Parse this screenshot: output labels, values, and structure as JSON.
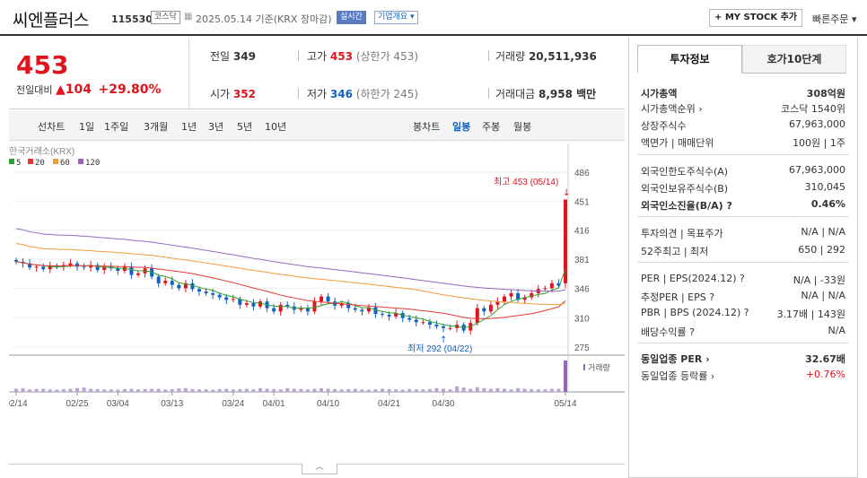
{
  "header": {
    "name": "씨엔플러스",
    "code": "115530",
    "market_badge": "코스닥",
    "date": "2025.05.14 기준(KRX 장마감)",
    "realtime_badge": "실시간",
    "company_badge": "기업개요 ▾",
    "mystock_label": "+ MY STOCK 추가",
    "quick_order": "빠른주문 ▾"
  },
  "quote": {
    "price": "453",
    "change_label": "전일대비",
    "change_arrow": "▲",
    "change": "104",
    "change_pct": "+29.80%",
    "prev_label": "전일",
    "prev": "349",
    "high_label": "고가",
    "high": "453",
    "high_limit": "(상한가 453)",
    "volume_label": "거래량",
    "volume": "20,511,936",
    "open_label": "시가",
    "open": "352",
    "low_label": "저가",
    "low": "346",
    "low_limit": "(하한가 245)",
    "amount_label": "거래대금",
    "amount": "8,958 백만"
  },
  "tabs": {
    "line_label": "선차트",
    "periods": [
      "1일",
      "1주일",
      "3개월",
      "1년",
      "3년",
      "5년",
      "10년"
    ],
    "candle_label": "봉차트",
    "candles": [
      "일봉",
      "주봉",
      "월봉"
    ]
  },
  "chart_data": {
    "type": "candlestick",
    "source_label": "한국거래소(KRX)",
    "legend": [
      {
        "name": "5",
        "color": "#2ca02c"
      },
      {
        "name": "20",
        "color": "#e53935"
      },
      {
        "name": "60",
        "color": "#f39c3a"
      },
      {
        "name": "120",
        "color": "#9467bd"
      }
    ],
    "y_ticks": [
      486,
      451,
      416,
      381,
      346,
      310,
      275
    ],
    "x_ticks": [
      "02/14",
      "02/25",
      "03/04",
      "03/13",
      "03/24",
      "04/01",
      "04/10",
      "04/21",
      "04/30",
      "05/14"
    ],
    "high_annotation": "최고 453 (05/14)",
    "low_annotation": "최저 292 (04/22)",
    "volume_label": "거래량",
    "up_color": "#e0141f",
    "down_color": "#1261c4",
    "closes": [
      378,
      376,
      371,
      372,
      369,
      373,
      372,
      374,
      376,
      372,
      371,
      374,
      368,
      372,
      370,
      367,
      372,
      362,
      364,
      370,
      360,
      352,
      355,
      350,
      346,
      352,
      345,
      342,
      340,
      338,
      335,
      332,
      333,
      326,
      328,
      324,
      330,
      322,
      318,
      326,
      324,
      320,
      322,
      318,
      330,
      336,
      330,
      325,
      328,
      322,
      320,
      318,
      323,
      315,
      314,
      312,
      316,
      310,
      308,
      305,
      305,
      302,
      300,
      298,
      298,
      302,
      295,
      304,
      322,
      318,
      326,
      330,
      336,
      340,
      332,
      335,
      340,
      345,
      346,
      352,
      349,
      453
    ],
    "volumes": [
      0.1,
      0.12,
      0.08,
      0.09,
      0.1,
      0.08,
      0.07,
      0.09,
      0.1,
      0.12,
      0.14,
      0.1,
      0.09,
      0.08,
      0.08,
      0.07,
      0.09,
      0.1,
      0.08,
      0.09,
      0.1,
      0.1,
      0.08,
      0.09,
      0.11,
      0.12,
      0.09,
      0.08,
      0.08,
      0.07,
      0.09,
      0.1,
      0.08,
      0.09,
      0.1,
      0.08,
      0.12,
      0.1,
      0.09,
      0.08,
      0.12,
      0.1,
      0.09,
      0.08,
      0.1,
      0.12,
      0.1,
      0.09,
      0.08,
      0.09,
      0.1,
      0.08,
      0.07,
      0.08,
      0.1,
      0.09,
      0.08,
      0.07,
      0.09,
      0.08,
      0.08,
      0.09,
      0.12,
      0.1,
      0.08,
      0.18,
      0.14,
      0.1,
      0.15,
      0.12,
      0.1,
      0.12,
      0.1,
      0.08,
      0.12,
      0.1,
      0.09,
      0.08,
      0.08,
      0.1,
      0.1,
      1.0
    ]
  },
  "invest": {
    "tab_on": "투자정보",
    "tab_off": "호가10단계",
    "rows": [
      {
        "k": "시가총액",
        "v": "308억원"
      },
      {
        "k": "시가총액순위 ›",
        "v": "코스닥 1540위"
      },
      {
        "k": "상장주식수",
        "v": "67,963,000"
      },
      {
        "k": "액면가 | 매매단위",
        "v": "100원 | 1주"
      },
      {
        "k": "외국인한도주식수(A)",
        "v": "67,963,000"
      },
      {
        "k": "외국인보유주식수(B)",
        "v": "310,045"
      },
      {
        "k": "외국인소진율(B/A) ?",
        "v": "0.46%"
      },
      {
        "k": "투자의견 | 목표주가",
        "v": "N/A | N/A"
      },
      {
        "k": "52주최고 | 최저",
        "v": "650 | 292"
      },
      {
        "k": "PER | EPS(2024.12) ?",
        "v": "N/A | -33원"
      },
      {
        "k": "추정PER | EPS ?",
        "v": "N/A | N/A"
      },
      {
        "k": "PBR | BPS (2024.12) ?",
        "v": "3.17배 | 143원"
      },
      {
        "k": "배당수익률 ?",
        "v": "N/A"
      },
      {
        "k": "동일업종 PER ›",
        "v": "32.67배"
      },
      {
        "k": "동일업종 등락률 ›",
        "v": "+0.76%"
      }
    ]
  }
}
